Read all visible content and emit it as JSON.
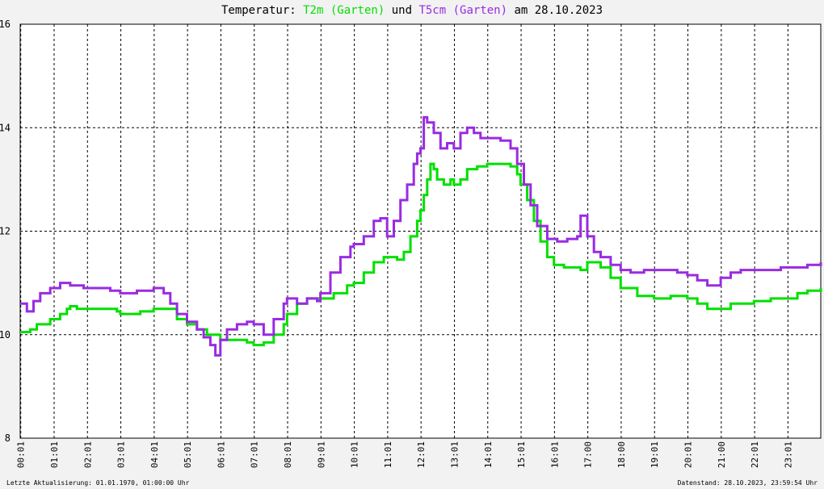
{
  "title": {
    "prefix": "Temperatur: ",
    "series1_label": "T2m (Garten)",
    "connector": " und ",
    "series2_label": "T5cm (Garten)",
    "suffix": " am 28.10.2023"
  },
  "footer": {
    "left": "Letzte Aktualisierung: 01.01.1970, 01:00:00 Uhr",
    "right": "Datenstand: 28.10.2023, 23:59:54 Uhr"
  },
  "colors": {
    "background": "#f2f2f2",
    "plot_background": "#ffffff",
    "grid": "#000000",
    "t2m": "#00e000",
    "t5cm": "#9a2be2"
  },
  "chart_data": {
    "type": "line",
    "title": "Temperatur: T2m (Garten) und T5cm (Garten) am 28.10.2023",
    "xlabel": "",
    "ylabel": "",
    "xlim": [
      0,
      24
    ],
    "ylim": [
      8,
      16
    ],
    "grid": true,
    "legend": "in title",
    "x_ticks": [
      "00:01",
      "01:01",
      "02:01",
      "03:01",
      "04:01",
      "05:01",
      "06:01",
      "07:01",
      "08:01",
      "09:01",
      "10:01",
      "11:01",
      "12:01",
      "13:01",
      "14:01",
      "15:01",
      "16:01",
      "17:00",
      "18:00",
      "19:01",
      "20:01",
      "21:00",
      "22:01",
      "23:01"
    ],
    "y_ticks": [
      8,
      10,
      12,
      14,
      16
    ],
    "series": [
      {
        "name": "T2m (Garten)",
        "x": [
          0,
          0.3,
          0.5,
          0.9,
          1.2,
          1.4,
          1.5,
          1.7,
          2.0,
          2.5,
          2.9,
          3.0,
          3.3,
          3.6,
          4.0,
          4.5,
          4.7,
          5.0,
          5.3,
          5.6,
          6.0,
          6.3,
          6.8,
          7.0,
          7.3,
          7.6,
          7.9,
          8.0,
          8.3,
          8.6,
          9.0,
          9.4,
          9.8,
          10.0,
          10.3,
          10.6,
          10.9,
          11.0,
          11.3,
          11.5,
          11.7,
          11.9,
          12.0,
          12.1,
          12.2,
          12.3,
          12.4,
          12.5,
          12.7,
          12.9,
          13.0,
          13.2,
          13.4,
          13.7,
          14.0,
          14.5,
          14.7,
          14.9,
          15.0,
          15.2,
          15.4,
          15.6,
          15.8,
          16.0,
          16.3,
          16.8,
          17.0,
          17.4,
          17.7,
          18.0,
          18.5,
          19.0,
          19.5,
          20.0,
          20.3,
          20.6,
          21.0,
          21.3,
          21.7,
          22.0,
          22.5,
          23.0,
          23.3,
          23.6,
          24.0
        ],
        "y": [
          10.05,
          10.1,
          10.2,
          10.3,
          10.4,
          10.5,
          10.55,
          10.5,
          10.5,
          10.5,
          10.45,
          10.4,
          10.4,
          10.45,
          10.5,
          10.5,
          10.3,
          10.2,
          10.1,
          10.0,
          9.9,
          9.9,
          9.85,
          9.8,
          9.85,
          10.0,
          10.2,
          10.4,
          10.6,
          10.7,
          10.7,
          10.8,
          10.95,
          11.0,
          11.2,
          11.4,
          11.5,
          11.5,
          11.45,
          11.6,
          11.9,
          12.2,
          12.4,
          12.7,
          13.0,
          13.3,
          13.2,
          13.0,
          12.9,
          13.0,
          12.9,
          13.0,
          13.2,
          13.25,
          13.3,
          13.3,
          13.25,
          13.1,
          12.9,
          12.6,
          12.2,
          11.8,
          11.5,
          11.35,
          11.3,
          11.25,
          11.4,
          11.3,
          11.1,
          10.9,
          10.75,
          10.7,
          10.75,
          10.7,
          10.6,
          10.5,
          10.5,
          10.6,
          10.6,
          10.65,
          10.7,
          10.7,
          10.8,
          10.85,
          10.9
        ]
      },
      {
        "name": "T5cm (Garten)",
        "x": [
          0,
          0.2,
          0.4,
          0.6,
          0.9,
          1.2,
          1.5,
          1.9,
          2.3,
          2.7,
          3.0,
          3.5,
          4.0,
          4.3,
          4.5,
          4.7,
          5.0,
          5.3,
          5.5,
          5.7,
          5.85,
          6.0,
          6.2,
          6.5,
          6.8,
          7.0,
          7.3,
          7.6,
          7.9,
          8.0,
          8.3,
          8.6,
          8.9,
          9.0,
          9.3,
          9.6,
          9.9,
          10.0,
          10.3,
          10.6,
          10.8,
          11.0,
          11.2,
          11.4,
          11.6,
          11.8,
          11.9,
          12.0,
          12.1,
          12.2,
          12.4,
          12.6,
          12.8,
          13.0,
          13.2,
          13.4,
          13.6,
          13.8,
          14.0,
          14.4,
          14.7,
          14.9,
          15.1,
          15.3,
          15.5,
          15.8,
          16.1,
          16.4,
          16.7,
          16.8,
          17.0,
          17.2,
          17.4,
          17.7,
          18.0,
          18.3,
          18.7,
          19.0,
          19.3,
          19.7,
          20.0,
          20.3,
          20.6,
          21.0,
          21.3,
          21.6,
          22.0,
          22.4,
          22.8,
          23.2,
          23.6,
          24.0
        ],
        "y": [
          10.6,
          10.45,
          10.65,
          10.8,
          10.9,
          11.0,
          10.95,
          10.9,
          10.9,
          10.85,
          10.8,
          10.85,
          10.9,
          10.8,
          10.6,
          10.4,
          10.25,
          10.1,
          9.95,
          9.8,
          9.6,
          9.9,
          10.1,
          10.2,
          10.25,
          10.2,
          10.0,
          10.3,
          10.6,
          10.7,
          10.6,
          10.7,
          10.65,
          10.8,
          11.2,
          11.5,
          11.7,
          11.75,
          11.9,
          12.2,
          12.25,
          11.9,
          12.2,
          12.6,
          12.9,
          13.3,
          13.5,
          13.6,
          14.2,
          14.1,
          13.9,
          13.6,
          13.7,
          13.6,
          13.9,
          14.0,
          13.9,
          13.8,
          13.8,
          13.75,
          13.6,
          13.3,
          12.9,
          12.5,
          12.1,
          11.85,
          11.8,
          11.85,
          11.9,
          12.3,
          11.9,
          11.6,
          11.5,
          11.35,
          11.25,
          11.2,
          11.25,
          11.25,
          11.25,
          11.2,
          11.15,
          11.05,
          10.95,
          11.1,
          11.2,
          11.25,
          11.25,
          11.25,
          11.3,
          11.3,
          11.35,
          11.4
        ]
      }
    ]
  }
}
